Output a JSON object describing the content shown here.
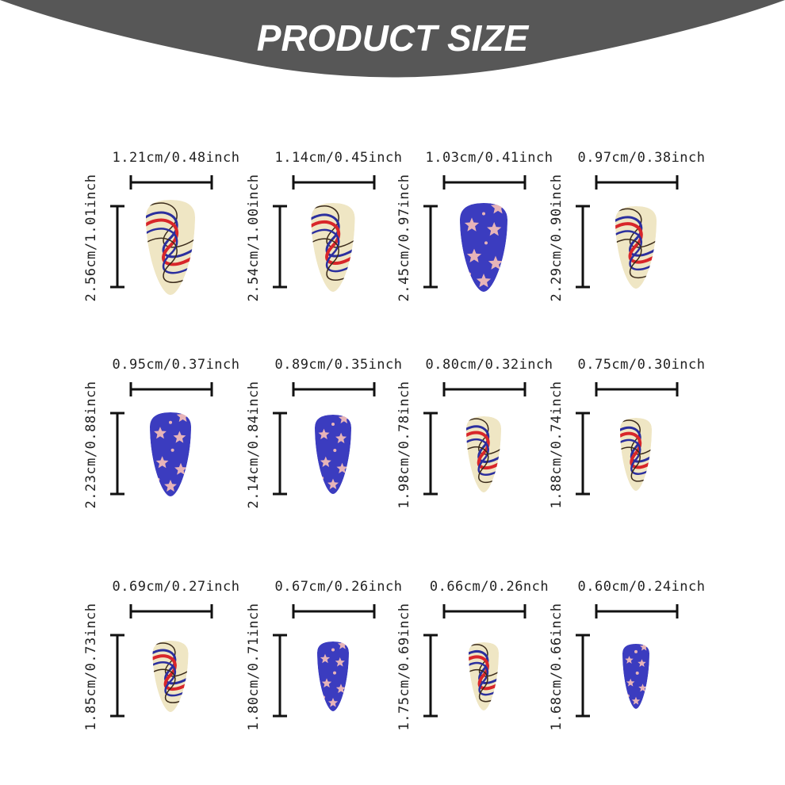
{
  "header": {
    "title": "PRODUCT SIZE"
  },
  "items": [
    {
      "width": "1.21cm/0.48inch",
      "height": "2.56cm/1.01inch"
    },
    {
      "width": "1.14cm/0.45inch",
      "height": "2.54cm/1.00inch"
    },
    {
      "width": "1.03cm/0.41inch",
      "height": "2.45cm/0.97inch"
    },
    {
      "width": "0.97cm/0.38inch",
      "height": "2.29cm/0.90inch"
    },
    {
      "width": "0.95cm/0.37inch",
      "height": "2.23cm/0.88inch"
    },
    {
      "width": "0.89cm/0.35inch",
      "height": "2.14cm/0.84inch"
    },
    {
      "width": "0.80cm/0.32inch",
      "height": "1.98cm/0.78inch"
    },
    {
      "width": "0.75cm/0.30inch",
      "height": "1.88cm/0.74inch"
    },
    {
      "width": "0.69cm/0.27inch",
      "height": "1.85cm/0.73inch"
    },
    {
      "width": "0.67cm/0.26inch",
      "height": "1.80cm/0.71inch"
    },
    {
      "width": "0.66cm/0.26nch",
      "height": "1.75cm/0.69inch"
    },
    {
      "width": "0.60cm/0.24inch",
      "height": "1.68cm/0.66inch"
    }
  ]
}
